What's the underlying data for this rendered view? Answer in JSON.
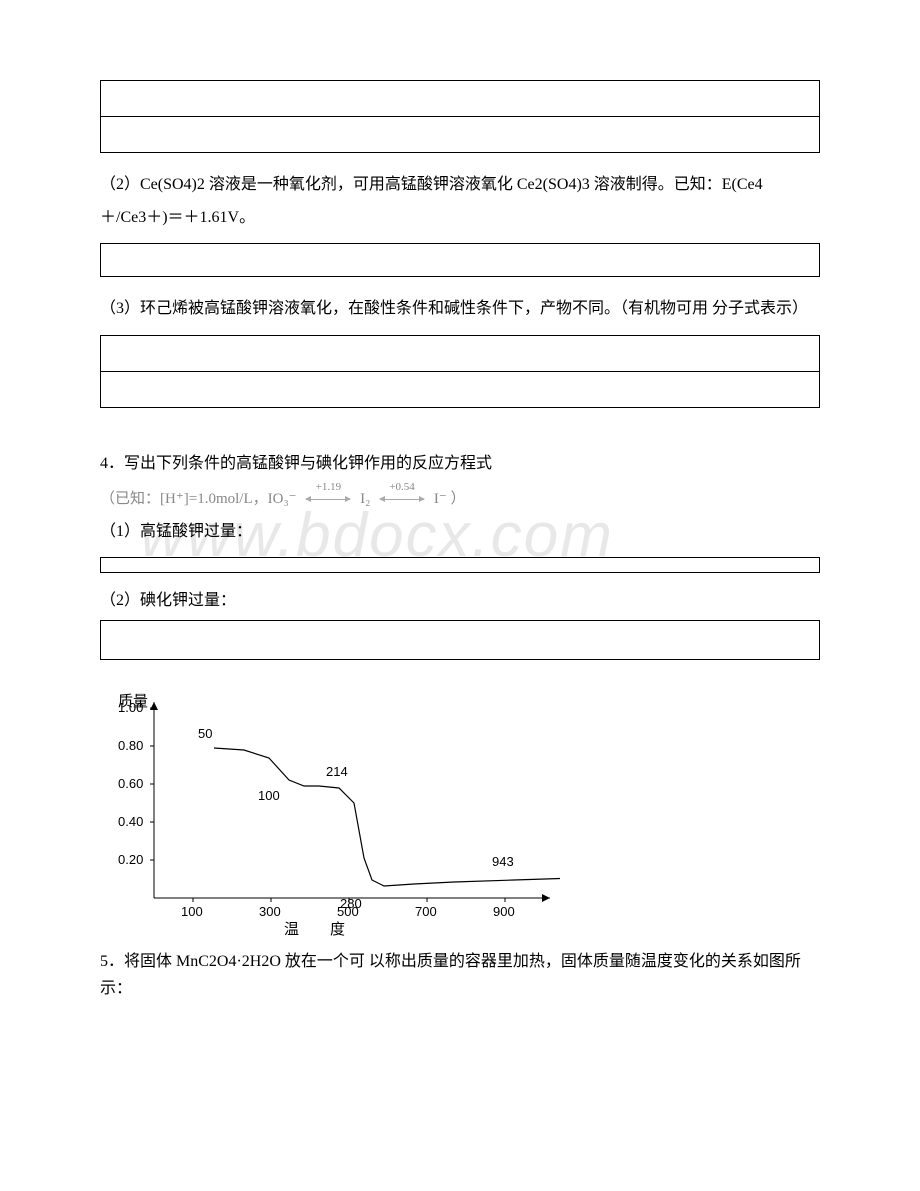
{
  "watermark": "www.bdocx.com",
  "q2": {
    "text1": "（2）Ce(SO4)2 溶液是一种氧化剂，可用高锰酸钾溶液氧化 Ce2(SO4)3 溶液制得。已知：E(Ce4",
    "text2": "＋/Ce3＋)＝＋1.61V。"
  },
  "q3": {
    "text": "（3）环己烯被高锰酸钾溶液氧化，在酸性条件和碱性条件下，产物不同。（有机物可用 分子式表示）"
  },
  "q4": {
    "title": "4．写出下列条件的高锰酸钾与碘化钾作用的反应方程式",
    "equation_prefix": "（已知：[H⁺]=1.0mol/L，IO₃⁻",
    "eq_label1": "+1.19",
    "eq_mid": "I₂",
    "eq_label2": "+0.54",
    "eq_end": "I⁻ ）",
    "sub1": "（1）高锰酸钾过量：",
    "sub2": "（2）碘化钾过量："
  },
  "chart": {
    "ylabel": "质量",
    "xlabel": "温　度",
    "y_ticks": [
      "1.00",
      "0.80",
      "0.60",
      "0.40",
      "0.20"
    ],
    "x_ticks": [
      "100",
      "300",
      "500",
      "700",
      "900"
    ],
    "annotations": {
      "p50": "50",
      "p100": "100",
      "p214": "214",
      "p280": "280",
      "p943": "943"
    },
    "curve_points": [
      [
        60,
        40
      ],
      [
        90,
        42
      ],
      [
        115,
        50
      ],
      [
        135,
        72
      ],
      [
        150,
        78
      ],
      [
        165,
        78
      ],
      [
        185,
        80
      ],
      [
        200,
        95
      ],
      [
        210,
        150
      ],
      [
        218,
        172
      ],
      [
        230,
        178
      ],
      [
        260,
        176
      ],
      [
        300,
        174
      ],
      [
        360,
        172
      ],
      [
        420,
        170
      ],
      [
        430,
        170
      ]
    ],
    "axis_color": "#000000",
    "curve_color": "#000000",
    "font_size_labels": 13,
    "font_size_axis": 15
  },
  "q5": {
    "text": "5．将固体 MnC2O4·2H2O 放在一个可 以称出质量的容器里加热，固体质量随温度变化的关系如图所示："
  }
}
